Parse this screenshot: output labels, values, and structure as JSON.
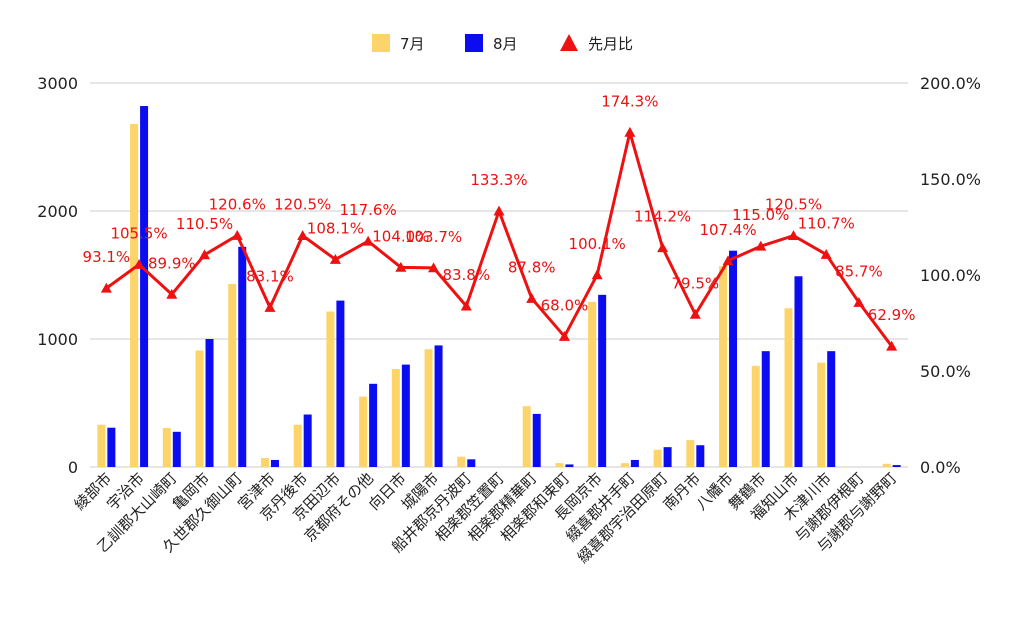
{
  "chart_data": {
    "type": "bar",
    "categories": [
      "綾部市",
      "宇治市",
      "乙訓郡大山崎町",
      "亀岡市",
      "久世郡久御山町",
      "宮津市",
      "京丹後市",
      "京田辺市",
      "京都府その他",
      "向日市",
      "城陽市",
      "船井郡京丹波町",
      "相楽郡笠置町",
      "相楽郡精華町",
      "相楽郡和束町",
      "長岡京市",
      "綴喜郡井手町",
      "綴喜郡宇治田原町",
      "南丹市",
      "八幡市",
      "舞鶴市",
      "福知山市",
      "木津川市",
      "与謝郡伊根町",
      "与謝郡与謝野町"
    ],
    "series": [
      {
        "name": "7月",
        "axis": "left",
        "kind": "bar",
        "color": "#fcd46a",
        "values": [
          330,
          2680,
          305,
          910,
          1430,
          70,
          330,
          1215,
          550,
          765,
          920,
          80,
          0,
          475,
          30,
          1290,
          30,
          135,
          210,
          1570,
          790,
          1240,
          815,
          0,
          25
        ]
      },
      {
        "name": "8月",
        "axis": "left",
        "kind": "bar",
        "color": "#0c0cf0",
        "values": [
          307,
          2820,
          275,
          1000,
          1720,
          55,
          410,
          1300,
          650,
          800,
          950,
          60,
          0,
          415,
          20,
          1345,
          55,
          155,
          170,
          1690,
          905,
          1490,
          905,
          0,
          15
        ]
      },
      {
        "name": "先月比",
        "axis": "right",
        "kind": "line",
        "color": "#ee1111",
        "marker": "triangle",
        "values": [
          93.1,
          105.5,
          89.9,
          110.5,
          120.6,
          83.1,
          120.5,
          108.1,
          117.6,
          104.0,
          103.7,
          83.8,
          133.3,
          87.8,
          68.0,
          100.1,
          174.3,
          114.2,
          79.5,
          107.4,
          115.0,
          120.5,
          110.7,
          85.7,
          62.9
        ]
      }
    ],
    "point_labels": [
      "93.1%",
      "105.5%",
      "89.9%",
      "110.5%",
      "120.6%",
      "83.1%",
      "120.5%",
      "108.1%",
      "117.6%",
      "104.0%",
      "103.7%",
      "83.8%",
      "133.3%",
      "87.8%",
      "68.0%",
      "100.1%",
      "174.3%",
      "114.2%",
      "79.5%",
      "107.4%",
      "115.0%",
      "120.5%",
      "110.7%",
      "85.7%",
      "62.9%"
    ],
    "left_axis": {
      "ylim": [
        0,
        3000
      ],
      "ticks": [
        0,
        1000,
        2000,
        3000
      ],
      "tick_labels": [
        "0",
        "1000",
        "2000",
        "3000"
      ]
    },
    "right_axis": {
      "ylim": [
        0,
        200
      ],
      "ticks": [
        0,
        50,
        100,
        150,
        200
      ],
      "tick_labels": [
        "0.0%",
        "50.0%",
        "100.0%",
        "150.0%",
        "200.0%"
      ]
    },
    "legend": {
      "position": "top-center",
      "items": [
        "7月",
        "8月",
        "先月比"
      ]
    },
    "grid": true,
    "colors": {
      "grid": "#cccccc",
      "text": "#222222"
    }
  }
}
